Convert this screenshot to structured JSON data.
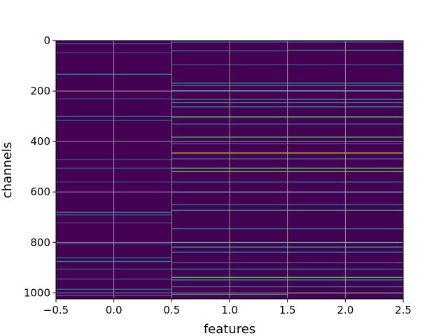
{
  "chart_data": {
    "type": "heatmap",
    "title": "",
    "xlabel": "features",
    "ylabel": "channels",
    "xlim": [
      -0.5,
      2.5
    ],
    "ylim": [
      1024,
      0
    ],
    "y_inverted": true,
    "grid": true,
    "colormap": "viridis",
    "x_ticks": [
      -0.5,
      0.0,
      0.5,
      1.0,
      1.5,
      2.0,
      2.5
    ],
    "x_tick_labels": [
      "−0.5",
      "0.0",
      "0.5",
      "1.0",
      "1.5",
      "2.0",
      "2.5"
    ],
    "y_ticks": [
      0,
      200,
      400,
      600,
      800,
      1000
    ],
    "y_tick_labels": [
      "0",
      "200",
      "400",
      "600",
      "800",
      "1000"
    ],
    "n_channels": 1024,
    "columns": [
      {
        "feature": 0,
        "highlights": [
          {
            "channel": 12,
            "v": 0.3
          },
          {
            "channel": 48,
            "v": 0.22
          },
          {
            "channel": 133,
            "v": 0.5
          },
          {
            "channel": 230,
            "v": 0.25
          },
          {
            "channel": 300,
            "v": 0.3
          },
          {
            "channel": 316,
            "v": 0.32
          },
          {
            "channel": 470,
            "v": 0.25
          },
          {
            "channel": 505,
            "v": 0.3
          },
          {
            "channel": 560,
            "v": 0.22
          },
          {
            "channel": 680,
            "v": 0.45
          },
          {
            "channel": 690,
            "v": 0.3
          },
          {
            "channel": 722,
            "v": 0.25
          },
          {
            "channel": 805,
            "v": 0.3
          },
          {
            "channel": 860,
            "v": 0.4
          },
          {
            "channel": 875,
            "v": 0.45
          },
          {
            "channel": 905,
            "v": 0.3
          },
          {
            "channel": 945,
            "v": 0.28
          },
          {
            "channel": 985,
            "v": 0.4
          },
          {
            "channel": 1010,
            "v": 0.35
          }
        ]
      },
      {
        "feature": 1,
        "highlights": [
          {
            "channel": 5,
            "v": 0.35
          },
          {
            "channel": 40,
            "v": 0.3
          },
          {
            "channel": 95,
            "v": 0.25
          },
          {
            "channel": 168,
            "v": 0.55
          },
          {
            "channel": 178,
            "v": 0.4
          },
          {
            "channel": 198,
            "v": 0.5
          },
          {
            "channel": 232,
            "v": 0.55
          },
          {
            "channel": 245,
            "v": 0.4
          },
          {
            "channel": 262,
            "v": 0.5
          },
          {
            "channel": 302,
            "v": 0.75
          },
          {
            "channel": 330,
            "v": 0.4
          },
          {
            "channel": 382,
            "v": 0.7
          },
          {
            "channel": 408,
            "v": 0.35
          },
          {
            "channel": 445,
            "v": 0.97
          },
          {
            "channel": 468,
            "v": 0.4
          },
          {
            "channel": 505,
            "v": 0.7
          },
          {
            "channel": 518,
            "v": 0.8
          },
          {
            "channel": 560,
            "v": 0.35
          },
          {
            "channel": 600,
            "v": 0.4
          },
          {
            "channel": 650,
            "v": 0.35
          },
          {
            "channel": 672,
            "v": 0.55
          },
          {
            "channel": 745,
            "v": 0.4
          },
          {
            "channel": 800,
            "v": 0.4
          },
          {
            "channel": 818,
            "v": 0.55
          },
          {
            "channel": 838,
            "v": 0.45
          },
          {
            "channel": 880,
            "v": 0.4
          },
          {
            "channel": 905,
            "v": 0.45
          },
          {
            "channel": 938,
            "v": 0.7
          },
          {
            "channel": 948,
            "v": 0.55
          },
          {
            "channel": 975,
            "v": 0.35
          },
          {
            "channel": 1005,
            "v": 0.6
          }
        ]
      },
      {
        "feature": 2,
        "highlights": [
          {
            "channel": 5,
            "v": 0.35
          },
          {
            "channel": 38,
            "v": 0.55
          },
          {
            "channel": 95,
            "v": 0.25
          },
          {
            "channel": 168,
            "v": 0.55
          },
          {
            "channel": 178,
            "v": 0.4
          },
          {
            "channel": 198,
            "v": 0.5
          },
          {
            "channel": 232,
            "v": 0.6
          },
          {
            "channel": 245,
            "v": 0.4
          },
          {
            "channel": 262,
            "v": 0.55
          },
          {
            "channel": 302,
            "v": 0.75
          },
          {
            "channel": 330,
            "v": 0.4
          },
          {
            "channel": 382,
            "v": 0.7
          },
          {
            "channel": 408,
            "v": 0.35
          },
          {
            "channel": 445,
            "v": 0.97
          },
          {
            "channel": 468,
            "v": 0.4
          },
          {
            "channel": 505,
            "v": 0.7
          },
          {
            "channel": 518,
            "v": 0.8
          },
          {
            "channel": 560,
            "v": 0.35
          },
          {
            "channel": 600,
            "v": 0.4
          },
          {
            "channel": 650,
            "v": 0.35
          },
          {
            "channel": 672,
            "v": 0.6
          },
          {
            "channel": 745,
            "v": 0.4
          },
          {
            "channel": 800,
            "v": 0.4
          },
          {
            "channel": 818,
            "v": 0.55
          },
          {
            "channel": 838,
            "v": 0.45
          },
          {
            "channel": 880,
            "v": 0.4
          },
          {
            "channel": 905,
            "v": 0.45
          },
          {
            "channel": 938,
            "v": 0.7
          },
          {
            "channel": 948,
            "v": 0.55
          },
          {
            "channel": 975,
            "v": 0.35
          },
          {
            "channel": 1000,
            "v": 0.65
          }
        ]
      }
    ]
  }
}
